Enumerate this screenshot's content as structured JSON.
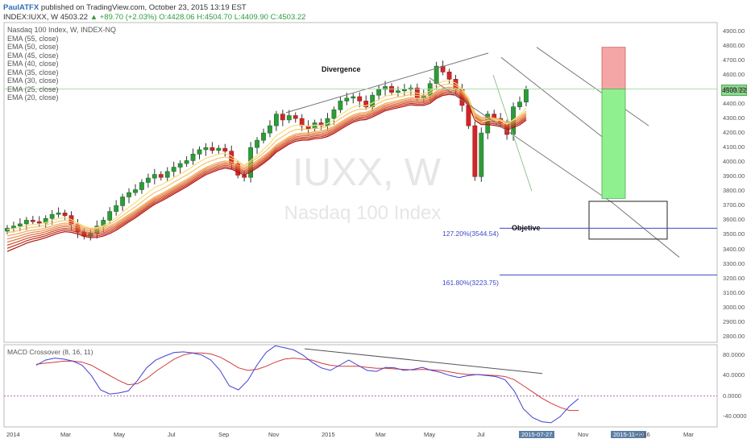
{
  "header": {
    "author": "PaulATFX",
    "published": "published on TradingView.com, October 23, 2015 13:19 EST"
  },
  "quote": {
    "symbol": "INDEX:IUXX, W",
    "price": "4503.22",
    "change": "▲ +89.70 (+2.03%)",
    "o": "O:4428.06",
    "h": "H:4504.70",
    "l": "L:4409.90",
    "c": "C:4503.22"
  },
  "legend": {
    "title": "Nasdaq 100 Index, W, INDEX-NQ",
    "emas": [
      "EMA (55, close)",
      "EMA (50, close)",
      "EMA (45, close)",
      "EMA (40, close)",
      "EMA (35, close)",
      "EMA (30, close)",
      "EMA (25, close)",
      "EMA (20, close)"
    ]
  },
  "watermark": {
    "symbol": "IUXX, W",
    "name": "Nasdaq 100 Index"
  },
  "annotations": {
    "divergence": "Divergence",
    "objetive": "Objetive",
    "fib1": "127.20%(3544.54)",
    "fib2": "161.80%(3223.75)"
  },
  "macd": {
    "label": "MACD Crossover (8, 16, 11)"
  },
  "last_price_tag": "4503.22",
  "colors": {
    "up": "#2e9b3a",
    "down": "#d32626",
    "macd": "#4040d0",
    "signal": "#d33a3a",
    "fib": "#3f48c9",
    "long_green": "#8ff08f",
    "long_red": "#f4a6a6"
  },
  "chart_data": {
    "type": "candlestick",
    "price_axis": {
      "ticks": [
        "4900.00",
        "4800.00",
        "4700.00",
        "4600.00",
        "4500.00",
        "4400.00",
        "4300.00",
        "4200.00",
        "4100.00",
        "4000.00",
        "3900.00",
        "3800.00",
        "3700.00",
        "3600.00",
        "3500.00",
        "3400.00",
        "3300.00",
        "3200.00",
        "3100.00",
        "3000.00",
        "2900.00",
        "2800.00"
      ],
      "ylim": [
        2760,
        4960
      ]
    },
    "macd_axis": {
      "ticks": [
        "80.0000",
        "40.0000",
        "0.0000",
        "-40.0000"
      ],
      "ylim": [
        -60,
        100
      ]
    },
    "time_axis": {
      "labels": [
        "2014",
        "Mar",
        "May",
        "Jul",
        "Sep",
        "Nov",
        "2015",
        "Mar",
        "May",
        "Jul",
        "2015-07-27",
        "Nov",
        "2015-11-09",
        "2016",
        "Mar"
      ],
      "highlighted": [
        "2015-07-27",
        "2015-11-09"
      ]
    },
    "candles_close": [
      3545,
      3560,
      3575,
      3600,
      3590,
      3580,
      3612,
      3640,
      3650,
      3632,
      3570,
      3520,
      3490,
      3510,
      3560,
      3600,
      3660,
      3700,
      3760,
      3790,
      3810,
      3860,
      3890,
      3915,
      3895,
      3935,
      3965,
      3990,
      4010,
      4055,
      4085,
      4100,
      4080,
      4095,
      4075,
      3990,
      3910,
      3895,
      4100,
      4150,
      4200,
      4250,
      4330,
      4290,
      4320,
      4300,
      4250,
      4230,
      4270,
      4250,
      4300,
      4360,
      4420,
      4440,
      4450,
      4420,
      4380,
      4460,
      4500,
      4520,
      4480,
      4490,
      4500,
      4510,
      4440,
      4460,
      4540,
      4660,
      4620,
      4570,
      4500,
      4390,
      4250,
      3900,
      4200,
      4330,
      4300,
      4270,
      4190,
      4380,
      4413,
      4503
    ],
    "fib_levels": [
      {
        "label": "127.20%(3544.54)",
        "value": 3544.54
      },
      {
        "label": "161.80%(3223.75)",
        "value": 3223.75
      }
    ],
    "position_box": {
      "entry": 4503,
      "target": 3750,
      "stop": 4790
    },
    "objective_box": {
      "top": 3730,
      "bottom": 3470
    }
  }
}
